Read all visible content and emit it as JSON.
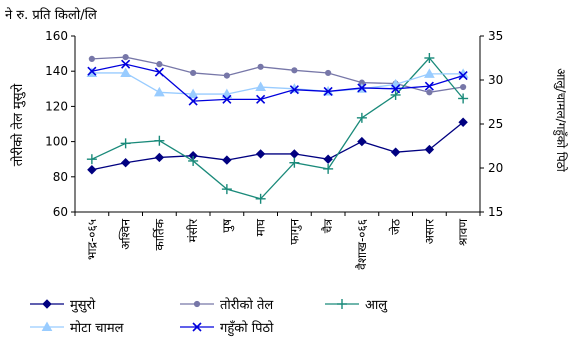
{
  "chart_data": {
    "type": "line",
    "unit_label": "ने रु. प्रति किलो/लि",
    "ylabel_left": "तोरीको तेल मुसुरो",
    "ylabel_right": "आलु/चामल/गहुँको पिठो",
    "ylim_left": [
      60,
      160
    ],
    "yticks_left": [
      "60",
      "80",
      "100",
      "120",
      "140",
      "160"
    ],
    "ylim_right": [
      15,
      35
    ],
    "yticks_right": [
      "15",
      "20",
      "25",
      "30",
      "35"
    ],
    "categories": [
      "भाद्र-०६५",
      "अश्विन",
      "कार्तिक",
      "मंसीर",
      "पुष",
      "माघ",
      "फागुन",
      "चैत्र",
      "वैशाख-०६६",
      "जेठ",
      "असार",
      "श्रावण"
    ],
    "series": [
      {
        "name": "मुसुरो",
        "axis": "left",
        "color": "#000080",
        "marker": "diamond",
        "values": [
          84,
          88,
          91,
          92,
          89.5,
          93,
          93,
          90,
          100,
          94,
          95.5,
          111
        ]
      },
      {
        "name": "तोरीको तेल",
        "axis": "left",
        "color": "#7777a8",
        "marker": "circle",
        "values": [
          147,
          148,
          144,
          139,
          137.5,
          142.5,
          140.5,
          139,
          133.5,
          133,
          128,
          131
        ]
      },
      {
        "name": "आलु",
        "axis": "right",
        "color": "#1a8a7a",
        "marker": "plus",
        "values": [
          21,
          22.8,
          23.1,
          20.8,
          17.6,
          16.5,
          20.6,
          19.9,
          25.7,
          28.3,
          32.5,
          27.9
        ]
      },
      {
        "name": "मोटा चामल",
        "axis": "right",
        "color": "#99ccff",
        "marker": "triangle",
        "values": [
          30.8,
          30.8,
          28.6,
          28.4,
          28.4,
          29.2,
          29.0,
          28.7,
          29.0,
          29.5,
          30.7,
          30.7
        ]
      },
      {
        "name": "गहुँको पिठो",
        "axis": "right",
        "color": "#0000dd",
        "marker": "x",
        "values": [
          31.0,
          31.8,
          30.9,
          27.6,
          27.8,
          27.8,
          28.9,
          28.7,
          29.1,
          29.0,
          29.3,
          30.5
        ]
      }
    ],
    "grid": false,
    "legend_position": "bottom-left"
  }
}
